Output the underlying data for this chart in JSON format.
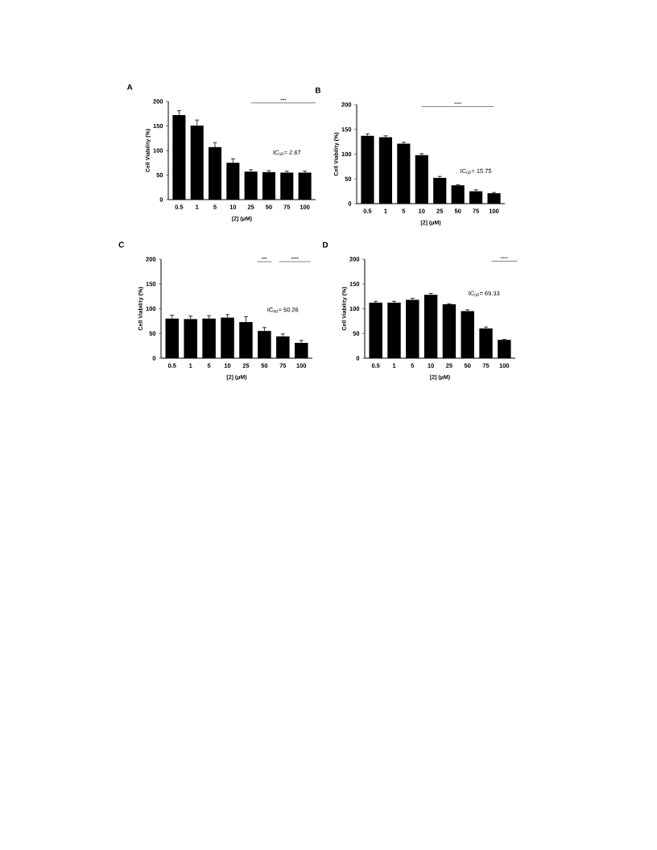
{
  "chart_data": [
    {
      "type": "bar",
      "title": "A",
      "categories": [
        "0.5",
        "1",
        "5",
        "10",
        "25",
        "50",
        "75",
        "100"
      ],
      "values": [
        172,
        151,
        107,
        75,
        57,
        56,
        55,
        55
      ],
      "errors": [
        9,
        11,
        9,
        8,
        4,
        3,
        3,
        3
      ],
      "color": "#000000",
      "xlabel": "[2] (μM)",
      "ylabel": "Cell Viability (%)",
      "ylim": [
        0,
        200
      ],
      "yticks": [
        0,
        50,
        100,
        150,
        200
      ],
      "annotations": [
        "IC$_{50}$= 2.67",
        "***"
      ]
    },
    {
      "type": "bar",
      "title": "B",
      "categories": [
        "0.5",
        "1",
        "5",
        "10",
        "25",
        "50",
        "75",
        "100"
      ],
      "values": [
        137,
        134,
        121,
        98,
        52,
        37,
        25,
        21
      ],
      "errors": [
        4,
        3,
        3,
        3,
        3,
        1,
        3,
        1.5
      ],
      "color": "#000000",
      "xlabel": "[2] (μM)",
      "ylabel": "Cell Viability (%)",
      "ylim": [
        0,
        200
      ],
      "yticks": [
        0,
        50,
        100,
        150,
        200
      ],
      "annotations": [
        "IC$_{50}$= 15.75",
        "****"
      ]
    },
    {
      "type": "bar",
      "title": "C",
      "categories": [
        "0.5",
        "1",
        "5",
        "10",
        "25",
        "50",
        "75",
        "100"
      ],
      "values": [
        80,
        79,
        80,
        82,
        73,
        55,
        44,
        31
      ],
      "errors": [
        7,
        6,
        6,
        6,
        11,
        7,
        5,
        5
      ],
      "color": "#000000",
      "xlabel": "[2] (μM)",
      "ylabel": "Cell Viability (%)",
      "ylim": [
        0,
        200
      ],
      "yticks": [
        0,
        50,
        100,
        150,
        200
      ],
      "annotations": [
        "IC$_{50}$= 50.26",
        "***",
        "****"
      ]
    },
    {
      "type": "bar",
      "title": "D",
      "categories": [
        "0.5",
        "1",
        "5",
        "10",
        "25",
        "50",
        "75",
        "100"
      ],
      "values": [
        112,
        112,
        118,
        128,
        109,
        95,
        60,
        37
      ],
      "errors": [
        3,
        3,
        3,
        3,
        1,
        3,
        3,
        1
      ],
      "color": "#000000",
      "xlabel": "[2] (μM)",
      "ylabel": "Cell Viability (%)",
      "ylim": [
        0,
        200
      ],
      "yticks": [
        0,
        50,
        100,
        150,
        200
      ],
      "annotations": [
        "IC$_{50}$= 69.33",
        "****"
      ]
    }
  ]
}
